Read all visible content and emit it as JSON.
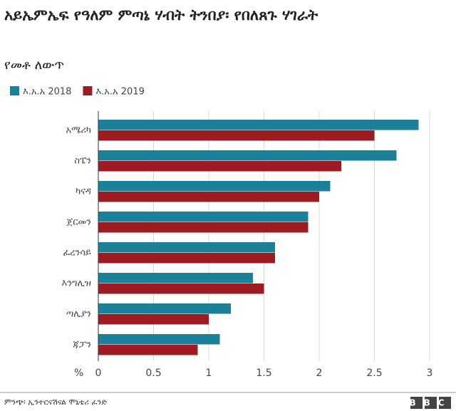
{
  "chart_data": {
    "type": "hbar",
    "title": "አይኤምኤፍ የዓለም ምጣኔ ሃብት ትንበያ፡ የበለጸጉ ሃገራት",
    "subtitle": "የመቶ ለውጥ",
    "categories": [
      "አሜሪካ",
      "ስፔን",
      "ካናዳ",
      "ጀርመን",
      "ፈረንሳይ",
      "እንግሊዝ",
      "ጣሊያን",
      "ጃፓን"
    ],
    "series": [
      {
        "name": "እ.አ.አ 2018",
        "color": "#1b8098",
        "values": [
          2.9,
          2.7,
          2.1,
          1.9,
          1.6,
          1.4,
          1.2,
          1.1
        ]
      },
      {
        "name": "እ.አ.አ 2019",
        "color": "#9e1b22",
        "values": [
          2.5,
          2.2,
          2.0,
          1.9,
          1.6,
          1.5,
          1.0,
          0.9
        ]
      }
    ],
    "x_label": "%",
    "xlim": [
      0,
      3
    ],
    "xticks": [
      0,
      0.5,
      1,
      1.5,
      2,
      2.5,
      3
    ],
    "grid": true,
    "source": "ምንጭ፡ ኢንተርናሽናል ሞኒቴሪ ፈንድ",
    "logo": "BBC"
  }
}
